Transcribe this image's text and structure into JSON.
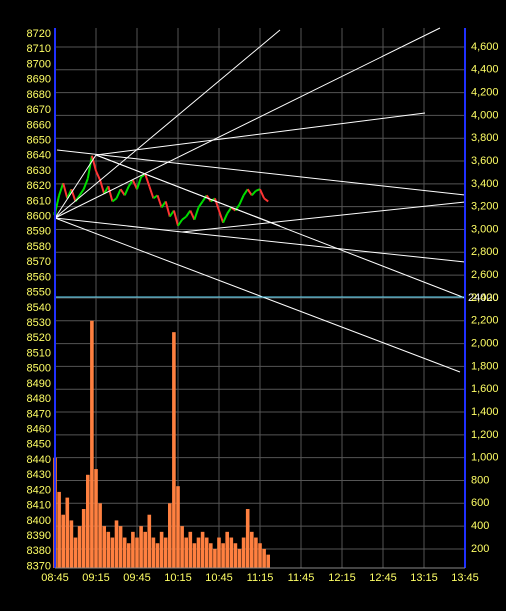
{
  "chart_data": {
    "type": "price-volume",
    "x": [
      "08:45",
      "08:48",
      "08:51",
      "08:54",
      "08:57",
      "09:00",
      "09:03",
      "09:06",
      "09:09",
      "09:12",
      "09:15",
      "09:18",
      "09:21",
      "09:24",
      "09:27",
      "09:30",
      "09:33",
      "09:36",
      "09:39",
      "09:42",
      "09:45",
      "09:48",
      "09:51",
      "09:54",
      "09:57",
      "10:00",
      "10:03",
      "10:06",
      "10:09",
      "10:12",
      "10:15",
      "10:18",
      "10:21",
      "10:24",
      "10:27",
      "10:30",
      "10:33",
      "10:36",
      "10:39",
      "10:42",
      "10:45",
      "10:48",
      "10:51",
      "10:54",
      "10:57",
      "11:00",
      "11:03",
      "11:06",
      "11:09",
      "11:12",
      "11:15",
      "11:18",
      "11:21"
    ],
    "series": [
      {
        "name": "price",
        "up_color": "#00dd00",
        "down_color": "#ff3333",
        "values": [
          8602,
          8614,
          8622,
          8612,
          8618,
          8610,
          8614,
          8618,
          8625,
          8640,
          8630,
          8624,
          8615,
          8620,
          8610,
          8612,
          8618,
          8614,
          8620,
          8624,
          8618,
          8626,
          8628,
          8620,
          8612,
          8614,
          8606,
          8610,
          8600,
          8604,
          8594,
          8598,
          8600,
          8604,
          8598,
          8606,
          8610,
          8614,
          8610,
          8612,
          8604,
          8596,
          8602,
          8606,
          8604,
          8608,
          8614,
          8618,
          8614,
          8617,
          8618,
          8612,
          8610
        ]
      },
      {
        "name": "volume",
        "axis": "y2",
        "color": "#ff8040",
        "values": [
          1000,
          700,
          500,
          650,
          450,
          300,
          400,
          550,
          850,
          2200,
          900,
          600,
          400,
          350,
          300,
          450,
          400,
          300,
          250,
          350,
          300,
          400,
          350,
          500,
          300,
          250,
          350,
          300,
          600,
          2100,
          750,
          400,
          300,
          350,
          250,
          300,
          350,
          300,
          250,
          200,
          300,
          250,
          350,
          300,
          250,
          200,
          300,
          550,
          350,
          300,
          250,
          200,
          150
        ]
      }
    ],
    "xlim": [
      "08:45",
      "13:45"
    ],
    "xticks": [
      "08:45",
      "09:15",
      "09:45",
      "10:15",
      "10:45",
      "11:15",
      "11:45",
      "12:15",
      "12:45",
      "13:15",
      "13:45"
    ],
    "ylim": [
      8369,
      8724
    ],
    "yticks": [
      8370,
      8380,
      8390,
      8400,
      8410,
      8420,
      8430,
      8440,
      8450,
      8460,
      8470,
      8480,
      8490,
      8500,
      8510,
      8520,
      8530,
      8540,
      8550,
      8560,
      8570,
      8580,
      8590,
      8600,
      8610,
      8620,
      8630,
      8640,
      8650,
      8660,
      8670,
      8680,
      8690,
      8700,
      8710,
      8720
    ],
    "y2lim": [
      33,
      4766
    ],
    "y2ticks": [
      200,
      400,
      600,
      800,
      {
        "value": 1000,
        "label": "1,000"
      },
      {
        "value": 1200,
        "label": "1,200"
      },
      {
        "value": 1400,
        "label": "1,400"
      },
      {
        "value": 1600,
        "label": "1,600"
      },
      {
        "value": 1800,
        "label": "1,800"
      },
      {
        "value": 2000,
        "label": "2,000"
      },
      {
        "value": 2200,
        "label": "2,200"
      },
      {
        "value": 2400,
        "label": "2,400"
      },
      {
        "value": 2600,
        "label": "2,600"
      },
      {
        "value": 2800,
        "label": "2,800"
      },
      {
        "value": 3000,
        "label": "3,000"
      },
      {
        "value": 3200,
        "label": "3,200"
      },
      {
        "value": 3400,
        "label": "3,400"
      },
      {
        "value": 3600,
        "label": "3,600"
      },
      {
        "value": 3800,
        "label": "3,800"
      },
      {
        "value": 4000,
        "label": "4,000"
      },
      {
        "value": 4200,
        "label": "4,200"
      },
      {
        "value": 4400,
        "label": "4,400"
      },
      {
        "value": 4600,
        "label": "4,600"
      }
    ],
    "grid": true,
    "reference_label": "24020"
  }
}
